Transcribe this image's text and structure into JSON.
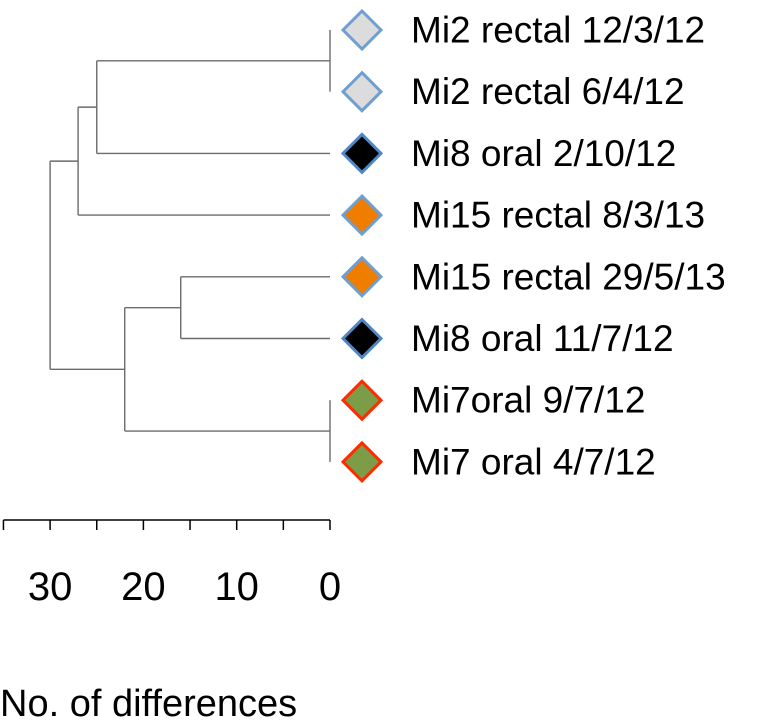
{
  "tree": {
    "leaves": [
      {
        "id": "L1",
        "label": "Mi2 rectal 12/3/12",
        "fill": "#dcdcdc",
        "stroke": "#6f9fd0"
      },
      {
        "id": "L2",
        "label": "Mi2 rectal 6/4/12",
        "fill": "#dcdcdc",
        "stroke": "#6f9fd0"
      },
      {
        "id": "L3",
        "label": "Mi8 oral 2/10/12",
        "fill": "#000000",
        "stroke": "#4f86c6"
      },
      {
        "id": "L4",
        "label": "Mi15 rectal 8/3/13",
        "fill": "#ee7d00",
        "stroke": "#6f9fd0"
      },
      {
        "id": "L5",
        "label": "Mi15 rectal 29/5/13",
        "fill": "#ee7d00",
        "stroke": "#6f9fd0"
      },
      {
        "id": "L6",
        "label": "Mi8 oral 11/7/12",
        "fill": "#000000",
        "stroke": "#4f86c6"
      },
      {
        "id": "L7",
        "label": "Mi7oral 9/7/12",
        "fill": "#7c9c48",
        "stroke": "#ff2a00"
      },
      {
        "id": "L8",
        "label": "Mi7 oral 4/7/12",
        "fill": "#7c9c48",
        "stroke": "#ff2a00"
      }
    ],
    "internal_nodes": [
      {
        "id": "N12",
        "children": [
          "L1",
          "L2"
        ],
        "height": 0
      },
      {
        "id": "N78",
        "children": [
          "L7",
          "L8"
        ],
        "height": 0
      },
      {
        "id": "N123",
        "children": [
          "N12",
          "L3"
        ],
        "height": 25
      },
      {
        "id": "N1234",
        "children": [
          "N123",
          "L4"
        ],
        "height": 27
      },
      {
        "id": "N56",
        "children": [
          "L5",
          "L6"
        ],
        "height": 16
      },
      {
        "id": "N5678",
        "children": [
          "N56",
          "N78"
        ],
        "height": 22
      },
      {
        "id": "ROOT",
        "children": [
          "N1234",
          "N5678"
        ],
        "height": 30
      }
    ]
  },
  "axis": {
    "title": "No. of differences",
    "range": [
      30,
      0
    ],
    "tick_labels": [
      {
        "value": 30,
        "text": "30"
      },
      {
        "value": 20,
        "text": "20"
      },
      {
        "value": 10,
        "text": "10"
      },
      {
        "value": 0,
        "text": "0"
      }
    ],
    "minor_ticks": [
      35,
      30,
      25,
      20,
      15,
      10,
      5,
      0
    ]
  },
  "colors": {
    "branch": "#6b6b6b",
    "axis": "#000000"
  }
}
